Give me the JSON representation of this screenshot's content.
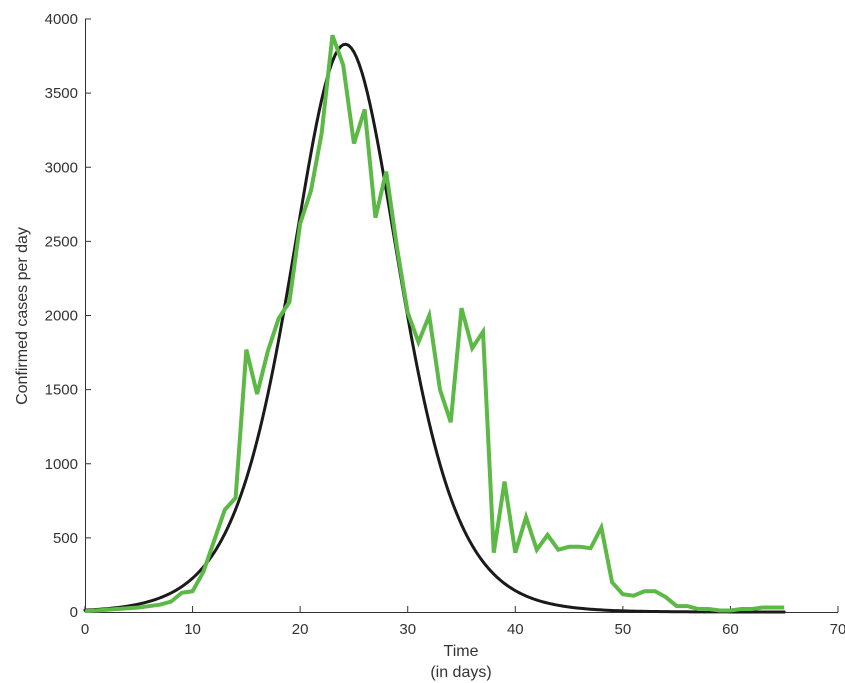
{
  "chart_data": {
    "type": "line",
    "xlabel_line1": "Time",
    "xlabel_line2": "(in days)",
    "ylabel": "Confirmed cases per day",
    "xlim": [
      0,
      70
    ],
    "ylim": [
      0,
      4000
    ],
    "x_ticks": [
      "0",
      "10",
      "20",
      "30",
      "40",
      "50",
      "60",
      "70"
    ],
    "y_ticks": [
      "0",
      "500",
      "1000",
      "1500",
      "2000",
      "2500",
      "3000",
      "3500",
      "4000"
    ],
    "grid": false,
    "colors": {
      "observed": "#5cb946",
      "fitted": "#1a1a1a",
      "axis": "#333333"
    },
    "series": [
      {
        "role": "observed",
        "x": [
          0,
          1,
          2,
          3,
          4,
          5,
          6,
          7,
          8,
          9,
          10,
          11,
          12,
          13,
          14,
          15,
          16,
          17,
          18,
          19,
          20,
          21,
          22,
          23,
          24,
          25,
          26,
          27,
          28,
          29,
          30,
          31,
          32,
          33,
          34,
          35,
          36,
          37,
          38,
          39,
          40,
          41,
          42,
          43,
          44,
          45,
          46,
          47,
          48,
          49,
          50,
          51,
          52,
          53,
          54,
          55,
          56,
          57,
          58,
          59,
          60,
          61,
          62,
          63,
          64,
          65
        ],
        "values": [
          5,
          10,
          15,
          20,
          25,
          30,
          40,
          50,
          70,
          130,
          140,
          270,
          480,
          690,
          770,
          1770,
          1470,
          1760,
          1980,
          2090,
          2620,
          2840,
          3230,
          3890,
          3690,
          3160,
          3390,
          2660,
          2970,
          2460,
          2020,
          1820,
          2000,
          1500,
          1280,
          2050,
          1780,
          1890,
          400,
          880,
          400,
          640,
          420,
          520,
          420,
          440,
          440,
          430,
          570,
          200,
          120,
          110,
          140,
          140,
          100,
          40,
          40,
          20,
          20,
          10,
          10,
          20,
          20,
          30,
          30,
          30
        ]
      },
      {
        "role": "fitted",
        "model": "logistic-derivative",
        "peak_day": 24.2,
        "peak_value": 3830,
        "scale_days": 3.4,
        "x_range": [
          0,
          65
        ]
      }
    ]
  }
}
